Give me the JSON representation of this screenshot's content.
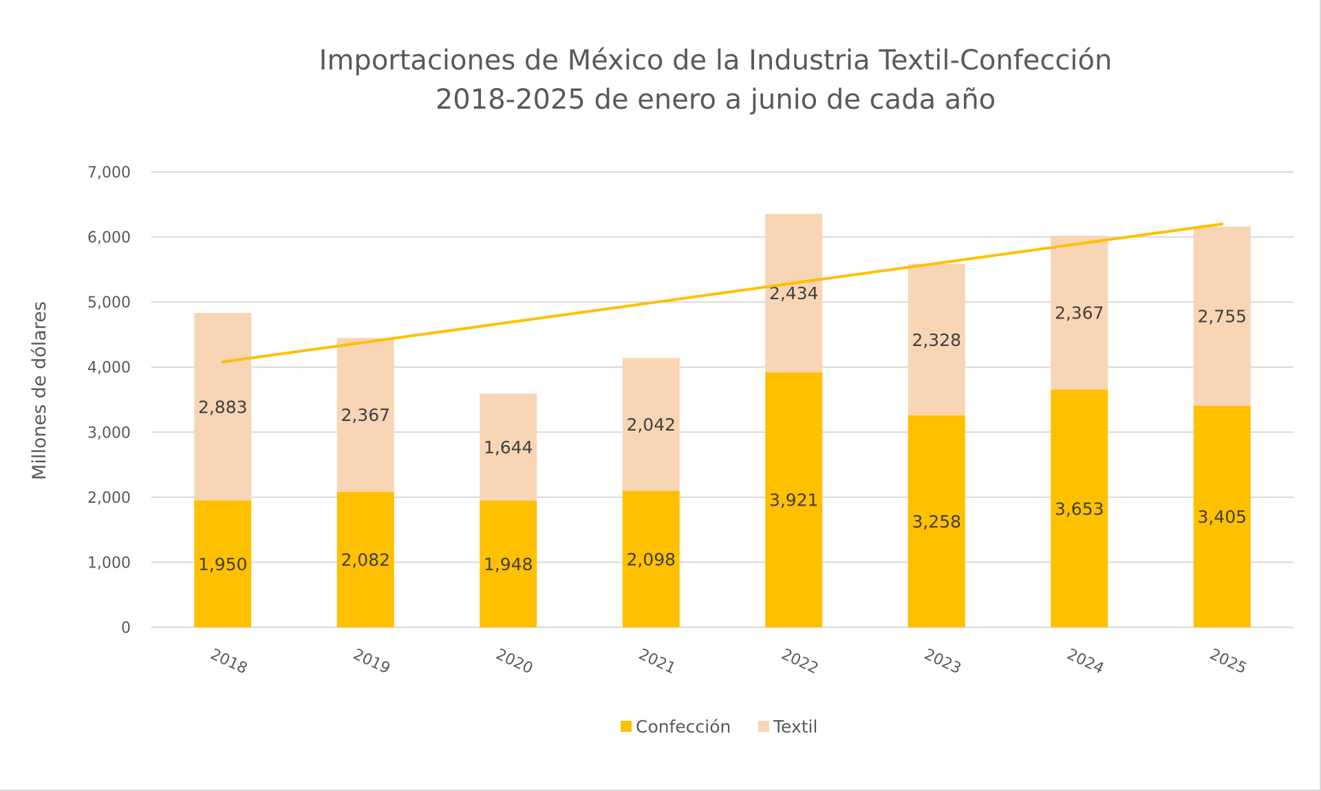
{
  "chart_data": {
    "type": "bar",
    "stacked": true,
    "title_lines": [
      "Importaciones de México de la Industria Textil-Confección",
      "2018-2025 de enero a junio de cada año"
    ],
    "xlabel": "",
    "ylabel": "Millones de dólares",
    "categories": [
      "2018",
      "2019",
      "2020",
      "2021",
      "2022",
      "2023",
      "2024",
      "2025"
    ],
    "series": [
      {
        "name": "Confección",
        "color": "#FFC000",
        "values": [
          1950,
          2082,
          1948,
          2098,
          3921,
          3258,
          3653,
          3405
        ],
        "labels": [
          "1,950",
          "2,082",
          "1,948",
          "2,098",
          "3,921",
          "3,258",
          "3,653",
          "3,405"
        ]
      },
      {
        "name": "Textil",
        "color": "#F8D5B4",
        "values": [
          2883,
          2367,
          1644,
          2042,
          2434,
          2328,
          2367,
          2755
        ],
        "labels": [
          "2,883",
          "2,367",
          "1,644",
          "2,042",
          "2,434",
          "2,328",
          "2,367",
          "2,755"
        ]
      }
    ],
    "trendline": {
      "type": "linear",
      "color": "#FFC000",
      "from_category": "2018",
      "to_category": "2025",
      "start_value": 4080,
      "end_value": 6200
    },
    "ylim": [
      0,
      7000
    ],
    "yticks": [
      0,
      1000,
      2000,
      3000,
      4000,
      5000,
      6000,
      7000
    ],
    "ytick_labels": [
      "0",
      "1,000",
      "2,000",
      "3,000",
      "4,000",
      "5,000",
      "6,000",
      "7,000"
    ],
    "grid": true,
    "legend": "bottom"
  }
}
